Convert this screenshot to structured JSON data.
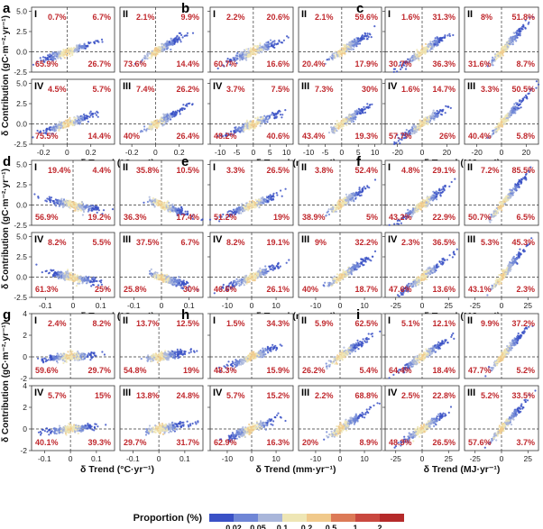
{
  "chart_data": {
    "type": "scatter-density-grid",
    "x_axis_label_templates": {
      "temp": "δ Trend (°C·yr⁻¹)",
      "prec": "δ Trend (mm·yr⁻¹)",
      "rad": "δ Trend (MJ·yr⁻¹)"
    },
    "y_axis_label": "δ Contribution (gC·m⁻²·yr⁻¹)",
    "colorbar": {
      "title": "Proportion (%)",
      "tick_labels": [
        "0.02",
        "0.05",
        "0.1",
        "0.2",
        "0.5",
        "1",
        "2"
      ],
      "colors": [
        "#3a51c6",
        "#6f86d6",
        "#a9b6da",
        "#eee6b5",
        "#f0c98b",
        "#dc7a57",
        "#c9483f",
        "#b52a2a"
      ]
    },
    "quadrant_names": [
      "I",
      "II",
      "III",
      "IV"
    ],
    "panels": [
      {
        "letter": "a",
        "var": "temp",
        "xlabel": "δ Trend (°C·yr⁻¹)",
        "xlim": [
          -0.3,
          0.4
        ],
        "xticks": [
          -0.2,
          0,
          0.2
        ],
        "xtick_labels": [
          "-0.2",
          "0",
          "0.2"
        ],
        "ylim": [
          -2.5,
          5.5
        ],
        "yticks": [
          -2.5,
          0,
          2.5,
          5
        ],
        "ytick_labels": [
          "-2.5",
          "0.0",
          "2.5",
          "5.0"
        ],
        "quadrants": {
          "I": [
            "0.7%",
            "65.9%"
          ],
          "II": [
            "6.7%",
            "26.7%"
          ],
          "III": [
            "26.2%",
            "26.4%"
          ],
          "IV": [
            "4.5%",
            "75.5%"
          ]
        },
        "quadrants_right": {
          "II_top": [
            "9.9%",
            "14.4%"
          ],
          "I_top": [
            "2.1%",
            "73.6%"
          ]
        },
        "slope": 1.0
      },
      {
        "letter": "b",
        "var": "prec",
        "xlabel": "δ Trend (mm·yr⁻¹)",
        "xlim": [
          -13,
          12
        ],
        "xticks": [
          -10,
          -5,
          0,
          5,
          10
        ],
        "xtick_labels": [
          "-10",
          "-5",
          "0",
          "5",
          "10"
        ],
        "ylim": [
          -2.5,
          5.5
        ],
        "yticks": [
          -2.5,
          0,
          2.5,
          5
        ],
        "ytick_labels": [
          "-2.5",
          "0.0",
          "2.5",
          "5.0"
        ],
        "slope": 1.2
      },
      {
        "letter": "c",
        "var": "rad",
        "xlabel": "δ Trend (MJ·yr⁻¹)",
        "xlim": [
          -30,
          30
        ],
        "xticks": [
          -20,
          0,
          20
        ],
        "xtick_labels": [
          "-20",
          "0",
          "20"
        ],
        "ylim": [
          -2.5,
          5.5
        ],
        "yticks": [
          -2.5,
          0,
          2.5,
          5
        ],
        "ytick_labels": [
          "-2.5",
          "0.0",
          "2.5",
          "5.0"
        ],
        "slope": 1.8
      },
      {
        "letter": "d",
        "var": "temp",
        "xlabel": "δ Trend (°C·yr⁻¹)",
        "xlim": [
          -0.15,
          0.15
        ],
        "xticks": [
          -0.1,
          0,
          0.1
        ],
        "xtick_labels": [
          "-0.1",
          "0",
          "0.1"
        ],
        "ylim": [
          -2.5,
          5.5
        ],
        "yticks": [
          -2.5,
          0,
          2.5,
          5
        ],
        "ytick_labels": [
          "-2.5",
          "0.0",
          "2.5",
          "5.0"
        ],
        "slope": -0.6
      },
      {
        "letter": "e",
        "var": "prec",
        "xlabel": "δ Trend (mm·yr⁻¹)",
        "xlim": [
          -17,
          17
        ],
        "xticks": [
          -10,
          0,
          10
        ],
        "xtick_labels": [
          "-10",
          "0",
          "10"
        ],
        "ylim": [
          -2.5,
          5.5
        ],
        "yticks": [
          -2.5,
          0,
          2.5,
          5
        ],
        "ytick_labels": [
          "-2.5",
          "0.0",
          "2.5",
          "5.0"
        ],
        "slope": 1.2
      },
      {
        "letter": "f",
        "var": "rad",
        "xlabel": "δ Trend (MJ·yr⁻¹)",
        "xlim": [
          -35,
          35
        ],
        "xticks": [
          -25,
          0,
          25
        ],
        "xtick_labels": [
          "-25",
          "0",
          "25"
        ],
        "ylim": [
          -2.5,
          5.5
        ],
        "yticks": [
          -2.5,
          0,
          2.5,
          5
        ],
        "ytick_labels": [
          "-2.5",
          "0.0",
          "2.5",
          "5.0"
        ],
        "slope": 2.0
      },
      {
        "letter": "g",
        "var": "temp",
        "xlabel": "δ Trend (°C·yr⁻¹)",
        "xlim": [
          -0.15,
          0.17
        ],
        "xticks": [
          -0.1,
          0,
          0.1
        ],
        "xtick_labels": [
          "-0.1",
          "0",
          "0.1"
        ],
        "ylim": [
          -2,
          4
        ],
        "yticks": [
          -2,
          0,
          2,
          4
        ],
        "ytick_labels": [
          "-2",
          "0",
          "2",
          "4"
        ],
        "slope": 0.3
      },
      {
        "letter": "h",
        "var": "prec",
        "xlabel": "δ Trend (mm·yr⁻¹)",
        "xlim": [
          -17,
          17
        ],
        "xticks": [
          -10,
          0,
          10
        ],
        "xtick_labels": [
          "-10",
          "0",
          "10"
        ],
        "ylim": [
          -2,
          4
        ],
        "yticks": [
          -2,
          0,
          2,
          4
        ],
        "ytick_labels": [
          "-2",
          "0",
          "2",
          "4"
        ],
        "slope": 1.2
      },
      {
        "letter": "i",
        "var": "rad",
        "xlabel": "δ Trend (MJ·yr⁻¹)",
        "xlim": [
          -35,
          35
        ],
        "xticks": [
          -25,
          0,
          25
        ],
        "xtick_labels": [
          "-25",
          "0",
          "25"
        ],
        "ylim": [
          -2,
          4
        ],
        "yticks": [
          -2,
          0,
          2,
          4
        ],
        "ytick_labels": [
          "-2",
          "0",
          "2",
          "4"
        ],
        "slope": 1.8
      }
    ],
    "subplot_labels": [
      {
        "panel": "a",
        "sub": "I",
        "top": "0.7%",
        "bottom": "65.9%",
        "left_top": "0.7%",
        "right_top": "6.7%",
        "left_bot": "65.9%",
        "right_bot": "26.7%"
      },
      {
        "panel": "a",
        "sub": "II",
        "left_top": "2.1%",
        "right_top": "9.9%",
        "left_bot": "73.6%",
        "right_bot": "14.4%"
      },
      {
        "panel": "a",
        "sub": "IV",
        "left_top": "4.5%",
        "right_top": "5.7%",
        "left_bot": "75.5%",
        "right_bot": "14.4%"
      },
      {
        "panel": "a",
        "sub": "III",
        "left_top": "7.4%",
        "right_top": "26.2%",
        "left_bot": "40%",
        "right_bot": "26.4%"
      },
      {
        "panel": "b",
        "sub": "I",
        "left_top": "2.2%",
        "right_top": "20.6%",
        "left_bot": "60.7%",
        "right_bot": "16.6%"
      },
      {
        "panel": "b",
        "sub": "II",
        "left_top": "2.1%",
        "right_top": "59.6%",
        "left_bot": "20.4%",
        "right_bot": "17.9%"
      },
      {
        "panel": "b",
        "sub": "IV",
        "left_top": "3.7%",
        "right_top": "7.5%",
        "left_bot": "48.2%",
        "right_bot": "40.6%"
      },
      {
        "panel": "b",
        "sub": "III",
        "left_top": "7.3%",
        "right_top": "30%",
        "left_bot": "43.4%",
        "right_bot": "19.3%"
      },
      {
        "panel": "c",
        "sub": "I",
        "left_top": "1.6%",
        "right_top": "31.3%",
        "left_bot": "30.7%",
        "right_bot": "36.3%"
      },
      {
        "panel": "c",
        "sub": "II",
        "left_top": "8%",
        "right_top": "51.8%",
        "left_bot": "31.6%",
        "right_bot": "8.7%"
      },
      {
        "panel": "c",
        "sub": "IV",
        "left_top": "1.6%",
        "right_top": "14.7%",
        "left_bot": "57.7%",
        "right_bot": "26%"
      },
      {
        "panel": "c",
        "sub": "III",
        "left_top": "3.3%",
        "right_top": "50.5%",
        "left_bot": "40.4%",
        "right_bot": "5.8%"
      },
      {
        "panel": "d",
        "sub": "I",
        "left_top": "19.4%",
        "right_top": "4.4%",
        "left_bot": "56.9%",
        "right_bot": "19.2%"
      },
      {
        "panel": "d",
        "sub": "II",
        "left_top": "35.8%",
        "right_top": "10.5%",
        "left_bot": "36.3%",
        "right_bot": "17.4%"
      },
      {
        "panel": "d",
        "sub": "IV",
        "left_top": "8.2%",
        "right_top": "5.5%",
        "left_bot": "61.3%",
        "right_bot": "25%"
      },
      {
        "panel": "d",
        "sub": "III",
        "left_top": "37.5%",
        "right_top": "6.7%",
        "left_bot": "25.8%",
        "right_bot": "30%"
      },
      {
        "panel": "e",
        "sub": "I",
        "left_top": "3.3%",
        "right_top": "26.5%",
        "left_bot": "51.2%",
        "right_bot": "19%"
      },
      {
        "panel": "e",
        "sub": "II",
        "left_top": "3.8%",
        "right_top": "52.4%",
        "left_bot": "38.9%",
        "right_bot": "5%"
      },
      {
        "panel": "e",
        "sub": "IV",
        "left_top": "8.2%",
        "right_top": "19.1%",
        "left_bot": "46.6%",
        "right_bot": "26.1%"
      },
      {
        "panel": "e",
        "sub": "III",
        "left_top": "9%",
        "right_top": "32.2%",
        "left_bot": "40%",
        "right_bot": "18.7%"
      },
      {
        "panel": "f",
        "sub": "I",
        "left_top": "4.8%",
        "right_top": "29.1%",
        "left_bot": "43.2%",
        "right_bot": "22.9%"
      },
      {
        "panel": "f",
        "sub": "II",
        "left_top": "7.2%",
        "right_top": "85.5%",
        "left_bot": "50.7%",
        "right_bot": "6.5%"
      },
      {
        "panel": "f",
        "sub": "IV",
        "left_top": "2.3%",
        "right_top": "36.5%",
        "left_bot": "47.6%",
        "right_bot": "13.6%"
      },
      {
        "panel": "f",
        "sub": "III",
        "left_top": "5.3%",
        "right_top": "45.3%",
        "left_bot": "43.1%",
        "right_bot": "2.3%"
      },
      {
        "panel": "g",
        "sub": "I",
        "left_top": "2.4%",
        "right_top": "8.2%",
        "left_bot": "59.6%",
        "right_bot": "29.7%"
      },
      {
        "panel": "g",
        "sub": "II",
        "left_top": "13.7%",
        "right_top": "12.5%",
        "left_bot": "54.8%",
        "right_bot": "19%"
      },
      {
        "panel": "g",
        "sub": "IV",
        "left_top": "5.7%",
        "right_top": "15%",
        "left_bot": "40.1%",
        "right_bot": "39.3%"
      },
      {
        "panel": "g",
        "sub": "III",
        "left_top": "13.8%",
        "right_top": "24.8%",
        "left_bot": "29.7%",
        "right_bot": "31.7%"
      },
      {
        "panel": "h",
        "sub": "I",
        "left_top": "1.5%",
        "right_top": "34.3%",
        "left_bot": "48.3%",
        "right_bot": "15.9%"
      },
      {
        "panel": "h",
        "sub": "II",
        "left_top": "5.9%",
        "right_top": "62.5%",
        "left_bot": "26.2%",
        "right_bot": "5.4%"
      },
      {
        "panel": "h",
        "sub": "IV",
        "left_top": "5.7%",
        "right_top": "15.2%",
        "left_bot": "62.9%",
        "right_bot": "16.3%"
      },
      {
        "panel": "h",
        "sub": "III",
        "left_top": "2.2%",
        "right_top": "68.8%",
        "left_bot": "20%",
        "right_bot": "8.9%"
      },
      {
        "panel": "i",
        "sub": "I",
        "left_top": "5.1%",
        "right_top": "12.1%",
        "left_bot": "64.4%",
        "right_bot": "18.4%"
      },
      {
        "panel": "i",
        "sub": "II",
        "left_top": "9.9%",
        "right_top": "37.2%",
        "left_bot": "47.7%",
        "right_bot": "5.2%"
      },
      {
        "panel": "i",
        "sub": "IV",
        "left_top": "2.5%",
        "right_top": "22.8%",
        "left_bot": "48.3%",
        "right_bot": "26.5%"
      },
      {
        "panel": "i",
        "sub": "III",
        "left_top": "5.2%",
        "right_top": "33.5%",
        "left_bot": "57.6%",
        "right_bot": "3.7%"
      }
    ]
  }
}
